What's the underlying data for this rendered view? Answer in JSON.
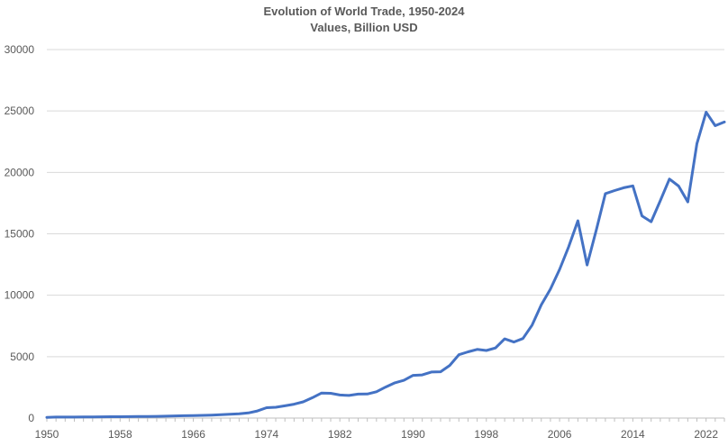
{
  "chart_data": {
    "type": "line",
    "title": "Evolution of World Trade, 1950-2024",
    "subtitle": "Values, Billion USD",
    "xlabel": "",
    "ylabel": "",
    "xlim": [
      1950,
      2024
    ],
    "ylim": [
      0,
      30000
    ],
    "yticks": [
      0,
      5000,
      10000,
      15000,
      20000,
      25000,
      30000
    ],
    "xticks": [
      1950,
      1958,
      1966,
      1974,
      1982,
      1990,
      1998,
      2006,
      2014,
      2022
    ],
    "grid": "horizontal",
    "legend": "none",
    "colors": {
      "line": "#4472C4",
      "grid": "#D9D9D9",
      "axis": "#BFBFBF",
      "text": "#595959"
    },
    "series": [
      {
        "x": [
          1950,
          1951,
          1952,
          1953,
          1954,
          1955,
          1956,
          1957,
          1958,
          1959,
          1960,
          1961,
          1962,
          1963,
          1964,
          1965,
          1966,
          1967,
          1968,
          1969,
          1970,
          1971,
          1972,
          1973,
          1974,
          1975,
          1976,
          1977,
          1978,
          1979,
          1980,
          1981,
          1982,
          1983,
          1984,
          1985,
          1986,
          1987,
          1988,
          1989,
          1990,
          1991,
          1992,
          1993,
          1994,
          1995,
          1996,
          1997,
          1998,
          1999,
          2000,
          2001,
          2002,
          2003,
          2004,
          2005,
          2006,
          2007,
          2008,
          2009,
          2010,
          2011,
          2012,
          2013,
          2014,
          2015,
          2016,
          2017,
          2018,
          2019,
          2020,
          2021,
          2022,
          2023,
          2024
        ],
        "values": [
          62,
          83,
          81,
          83,
          86,
          94,
          104,
          112,
          108,
          116,
          130,
          134,
          142,
          155,
          176,
          190,
          209,
          219,
          241,
          277,
          316,
          350,
          418,
          576,
          840,
          880,
          1000,
          1130,
          1320,
          1660,
          2040,
          2020,
          1880,
          1840,
          1950,
          1960,
          2140,
          2520,
          2870,
          3070,
          3480,
          3510,
          3750,
          3770,
          4280,
          5160,
          5390,
          5590,
          5500,
          5710,
          6450,
          6190,
          6480,
          7570,
          9220,
          10500,
          12100,
          13950,
          16060,
          12460,
          15270,
          18270,
          18520,
          18750,
          18900,
          16460,
          15980,
          17710,
          19460,
          18890,
          17600,
          22340,
          24900,
          23800,
          24100
        ]
      }
    ]
  }
}
